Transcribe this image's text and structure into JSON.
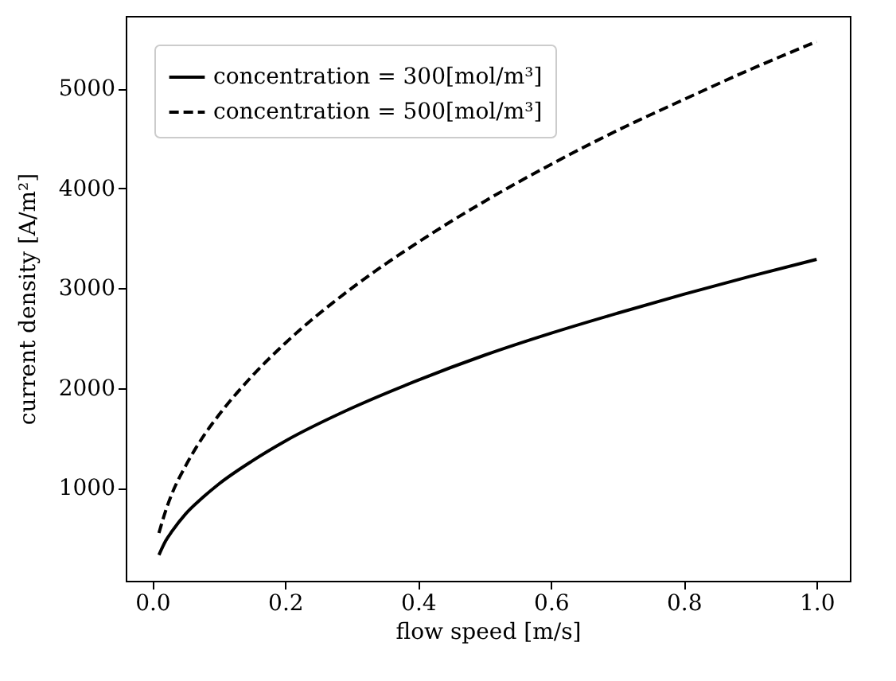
{
  "chart_data": {
    "type": "line",
    "xlabel": "flow speed  [m/s]",
    "ylabel": "current density  [A/m²]",
    "x": [
      0.01,
      0.02,
      0.03,
      0.05,
      0.075,
      0.1,
      0.15,
      0.2,
      0.3,
      0.4,
      0.5,
      0.6,
      0.7,
      0.8,
      0.9,
      1.0
    ],
    "series": [
      {
        "name": "concentration = 300[mol/m³]",
        "color": "#000000",
        "line_style": "solid",
        "values": [
          330,
          470,
          570,
          740,
          900,
          1040,
          1270,
          1470,
          1800,
          2080,
          2330,
          2550,
          2750,
          2940,
          3120,
          3290
        ]
      },
      {
        "name": "concentration = 500[mol/m³]",
        "color": "#000000",
        "line_style": "dashed",
        "values": [
          550,
          770,
          950,
          1220,
          1500,
          1730,
          2120,
          2450,
          3000,
          3460,
          3870,
          4240,
          4580,
          4890,
          5190,
          5470
        ]
      }
    ],
    "xlim": [
      -0.04,
      1.05
    ],
    "xticks": [
      {
        "value": 0,
        "label": "0.0"
      },
      {
        "value": 0.2,
        "label": "0.2"
      },
      {
        "value": 0.4,
        "label": "0.4"
      },
      {
        "value": 0.6,
        "label": "0.6"
      },
      {
        "value": 0.8,
        "label": "0.8"
      },
      {
        "value": 1,
        "label": "1.0"
      }
    ],
    "ylim": [
      72,
      5727
    ],
    "yticks": [
      1000,
      2000,
      3000,
      4000,
      5000
    ],
    "legend": "top left",
    "grid": false
  }
}
